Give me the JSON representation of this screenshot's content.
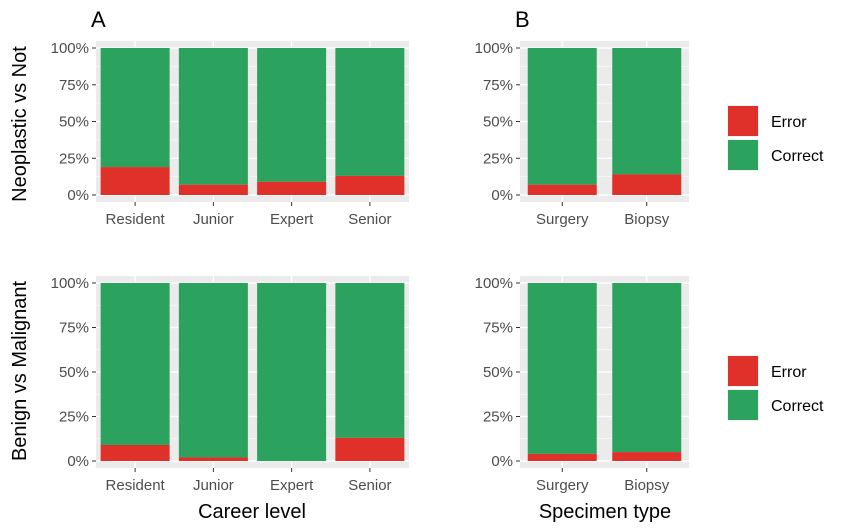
{
  "colors": {
    "Error": "#e0302a",
    "Correct": "#2ca25f",
    "panel_bg": "#ebebeb",
    "grid": "#ffffff"
  },
  "row_labels": [
    "Neoplastic vs Not",
    "Benign vs Malignant"
  ],
  "col_tags": [
    "A",
    "B"
  ],
  "x_titles": [
    "Career level",
    "Specimen type"
  ],
  "legend": {
    "items": [
      "Error",
      "Correct"
    ]
  },
  "chart_data": [
    {
      "panel": "A",
      "row": "Neoplastic vs Not",
      "type": "bar",
      "stacked": true,
      "categories": [
        "Resident",
        "Junior",
        "Expert",
        "Senior"
      ],
      "series": [
        {
          "name": "Error",
          "values": [
            0.19,
            0.07,
            0.09,
            0.13
          ]
        },
        {
          "name": "Correct",
          "values": [
            0.81,
            0.93,
            0.91,
            0.87
          ]
        }
      ],
      "y_ticks": [
        "0%",
        "25%",
        "50%",
        "75%",
        "100%"
      ],
      "ylim": [
        0,
        1
      ],
      "xlabel": "",
      "ylabel": "Neoplastic vs Not"
    },
    {
      "panel": "B",
      "row": "Neoplastic vs Not",
      "type": "bar",
      "stacked": true,
      "categories": [
        "Surgery",
        "Biopsy"
      ],
      "series": [
        {
          "name": "Error",
          "values": [
            0.07,
            0.14
          ]
        },
        {
          "name": "Correct",
          "values": [
            0.93,
            0.86
          ]
        }
      ],
      "y_ticks": [
        "0%",
        "25%",
        "50%",
        "75%",
        "100%"
      ],
      "ylim": [
        0,
        1
      ],
      "xlabel": "",
      "ylabel": ""
    },
    {
      "panel": "A",
      "row": "Benign vs Malignant",
      "type": "bar",
      "stacked": true,
      "categories": [
        "Resident",
        "Junior",
        "Expert",
        "Senior"
      ],
      "series": [
        {
          "name": "Error",
          "values": [
            0.09,
            0.02,
            0.0,
            0.13
          ]
        },
        {
          "name": "Correct",
          "values": [
            0.91,
            0.98,
            1.0,
            0.87
          ]
        }
      ],
      "y_ticks": [
        "0%",
        "25%",
        "50%",
        "75%",
        "100%"
      ],
      "ylim": [
        0,
        1
      ],
      "xlabel": "Career level",
      "ylabel": "Benign vs Malignant"
    },
    {
      "panel": "B",
      "row": "Benign vs Malignant",
      "type": "bar",
      "stacked": true,
      "categories": [
        "Surgery",
        "Biopsy"
      ],
      "series": [
        {
          "name": "Error",
          "values": [
            0.04,
            0.05
          ]
        },
        {
          "name": "Correct",
          "values": [
            0.96,
            0.95
          ]
        }
      ],
      "y_ticks": [
        "0%",
        "25%",
        "50%",
        "75%",
        "100%"
      ],
      "ylim": [
        0,
        1
      ],
      "xlabel": "Specimen type",
      "ylabel": ""
    }
  ]
}
